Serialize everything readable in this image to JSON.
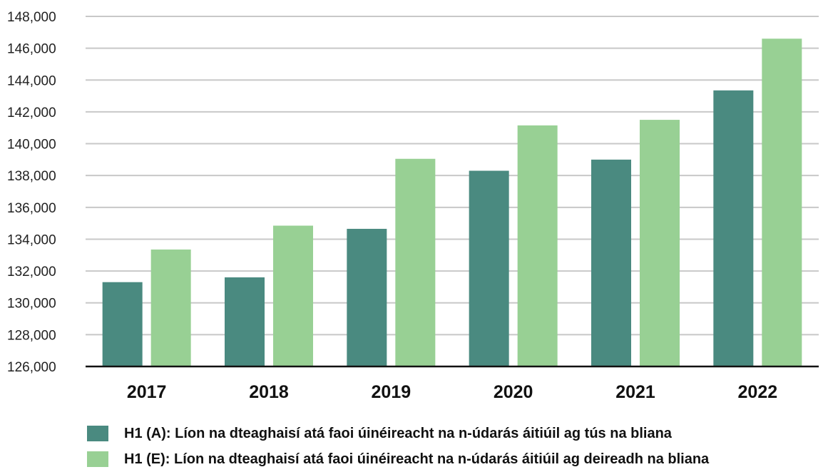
{
  "chart_data": {
    "type": "bar",
    "categories": [
      "2017",
      "2018",
      "2019",
      "2020",
      "2021",
      "2022"
    ],
    "series": [
      {
        "name": "H1 (A): Líon na dteaghaisí atá faoi úinéireacht na n-údarás áitiúil ag tús na bliana",
        "color": "#4a8a80",
        "values": [
          131300,
          131600,
          134650,
          138300,
          139000,
          143350
        ]
      },
      {
        "name": "H1 (E): Líon na dteaghaisí atá faoi úinéireacht na n-údarás áitiúil ag deireadh na bliana",
        "color": "#98d094",
        "values": [
          133350,
          134850,
          139050,
          141150,
          141500,
          146600
        ]
      }
    ],
    "ylim": [
      126000,
      148000
    ],
    "yticks": [
      "126,000",
      "128,000",
      "130,000",
      "132,000",
      "134,000",
      "136,000",
      "138,000",
      "140,000",
      "142,000",
      "144,000",
      "146,000",
      "148,000"
    ],
    "grid": true,
    "gridline_color": "#c8c8c8",
    "legend_position": "bottom-left",
    "title": "",
    "xlabel": "",
    "ylabel": ""
  }
}
